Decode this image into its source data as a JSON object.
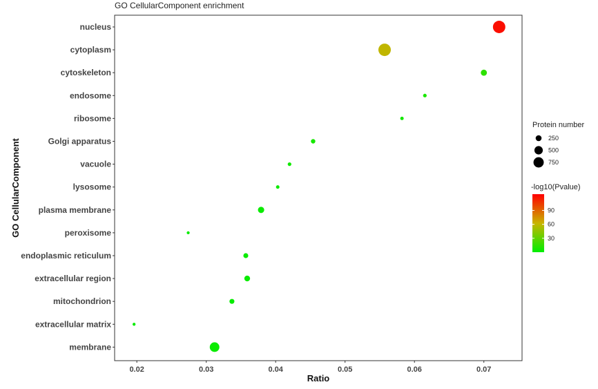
{
  "chart_data": {
    "type": "scatter",
    "title": "GO CellularComponent enrichment",
    "xlabel": "Ratio",
    "ylabel": "GO CellularComponent",
    "xlim": [
      0.0168,
      0.0755
    ],
    "xticks": [
      0.02,
      0.03,
      0.04,
      0.05,
      0.06,
      0.07
    ],
    "xtick_labels": [
      "0.02",
      "0.03",
      "0.04",
      "0.05",
      "0.06",
      "0.07"
    ],
    "grid": false,
    "categories": [
      "nucleus",
      "cytoplasm",
      "cytoskeleton",
      "endosome",
      "ribosome",
      "Golgi apparatus",
      "vacuole",
      "lysosome",
      "plasma membrane",
      "peroxisome",
      "endoplasmic reticulum",
      "extracellular region",
      "mitochondrion",
      "extracellular matrix",
      "membrane"
    ],
    "points": [
      {
        "category": "nucleus",
        "ratio": 0.0722,
        "protein_number": 700,
        "neg_log10_pvalue": 120
      },
      {
        "category": "cytoplasm",
        "ratio": 0.0557,
        "protein_number": 700,
        "neg_log10_pvalue": 60
      },
      {
        "category": "cytoskeleton",
        "ratio": 0.07,
        "protein_number": 170,
        "neg_log10_pvalue": 14
      },
      {
        "category": "endosome",
        "ratio": 0.0615,
        "protein_number": 60,
        "neg_log10_pvalue": 8
      },
      {
        "category": "ribosome",
        "ratio": 0.0582,
        "protein_number": 55,
        "neg_log10_pvalue": 6
      },
      {
        "category": "Golgi apparatus",
        "ratio": 0.0454,
        "protein_number": 90,
        "neg_log10_pvalue": 7
      },
      {
        "category": "vacuole",
        "ratio": 0.042,
        "protein_number": 60,
        "neg_log10_pvalue": 5
      },
      {
        "category": "lysosome",
        "ratio": 0.0403,
        "protein_number": 55,
        "neg_log10_pvalue": 4
      },
      {
        "category": "plasma membrane",
        "ratio": 0.0379,
        "protein_number": 180,
        "neg_log10_pvalue": 3
      },
      {
        "category": "peroxisome",
        "ratio": 0.0274,
        "protein_number": 40,
        "neg_log10_pvalue": 2
      },
      {
        "category": "endoplasmic reticulum",
        "ratio": 0.0357,
        "protein_number": 110,
        "neg_log10_pvalue": 3
      },
      {
        "category": "extracellular region",
        "ratio": 0.0359,
        "protein_number": 150,
        "neg_log10_pvalue": 3
      },
      {
        "category": "mitochondrion",
        "ratio": 0.0337,
        "protein_number": 110,
        "neg_log10_pvalue": 2
      },
      {
        "category": "extracellular matrix",
        "ratio": 0.0196,
        "protein_number": 40,
        "neg_log10_pvalue": 2
      },
      {
        "category": "membrane",
        "ratio": 0.0312,
        "protein_number": 420,
        "neg_log10_pvalue": 3
      }
    ],
    "size_legend": {
      "title": "Protein number",
      "values": [
        250,
        500,
        750
      ],
      "labels": [
        "250",
        "500",
        "750"
      ]
    },
    "color_legend": {
      "title": "-log10(Pvalue)",
      "min": 0,
      "max": 125,
      "ticks": [
        30,
        60,
        90
      ],
      "tick_labels": [
        "30",
        "60",
        "90"
      ],
      "colors": [
        "#00ee00",
        "#c8b400",
        "#ff0000"
      ]
    },
    "legend_position": "right"
  }
}
